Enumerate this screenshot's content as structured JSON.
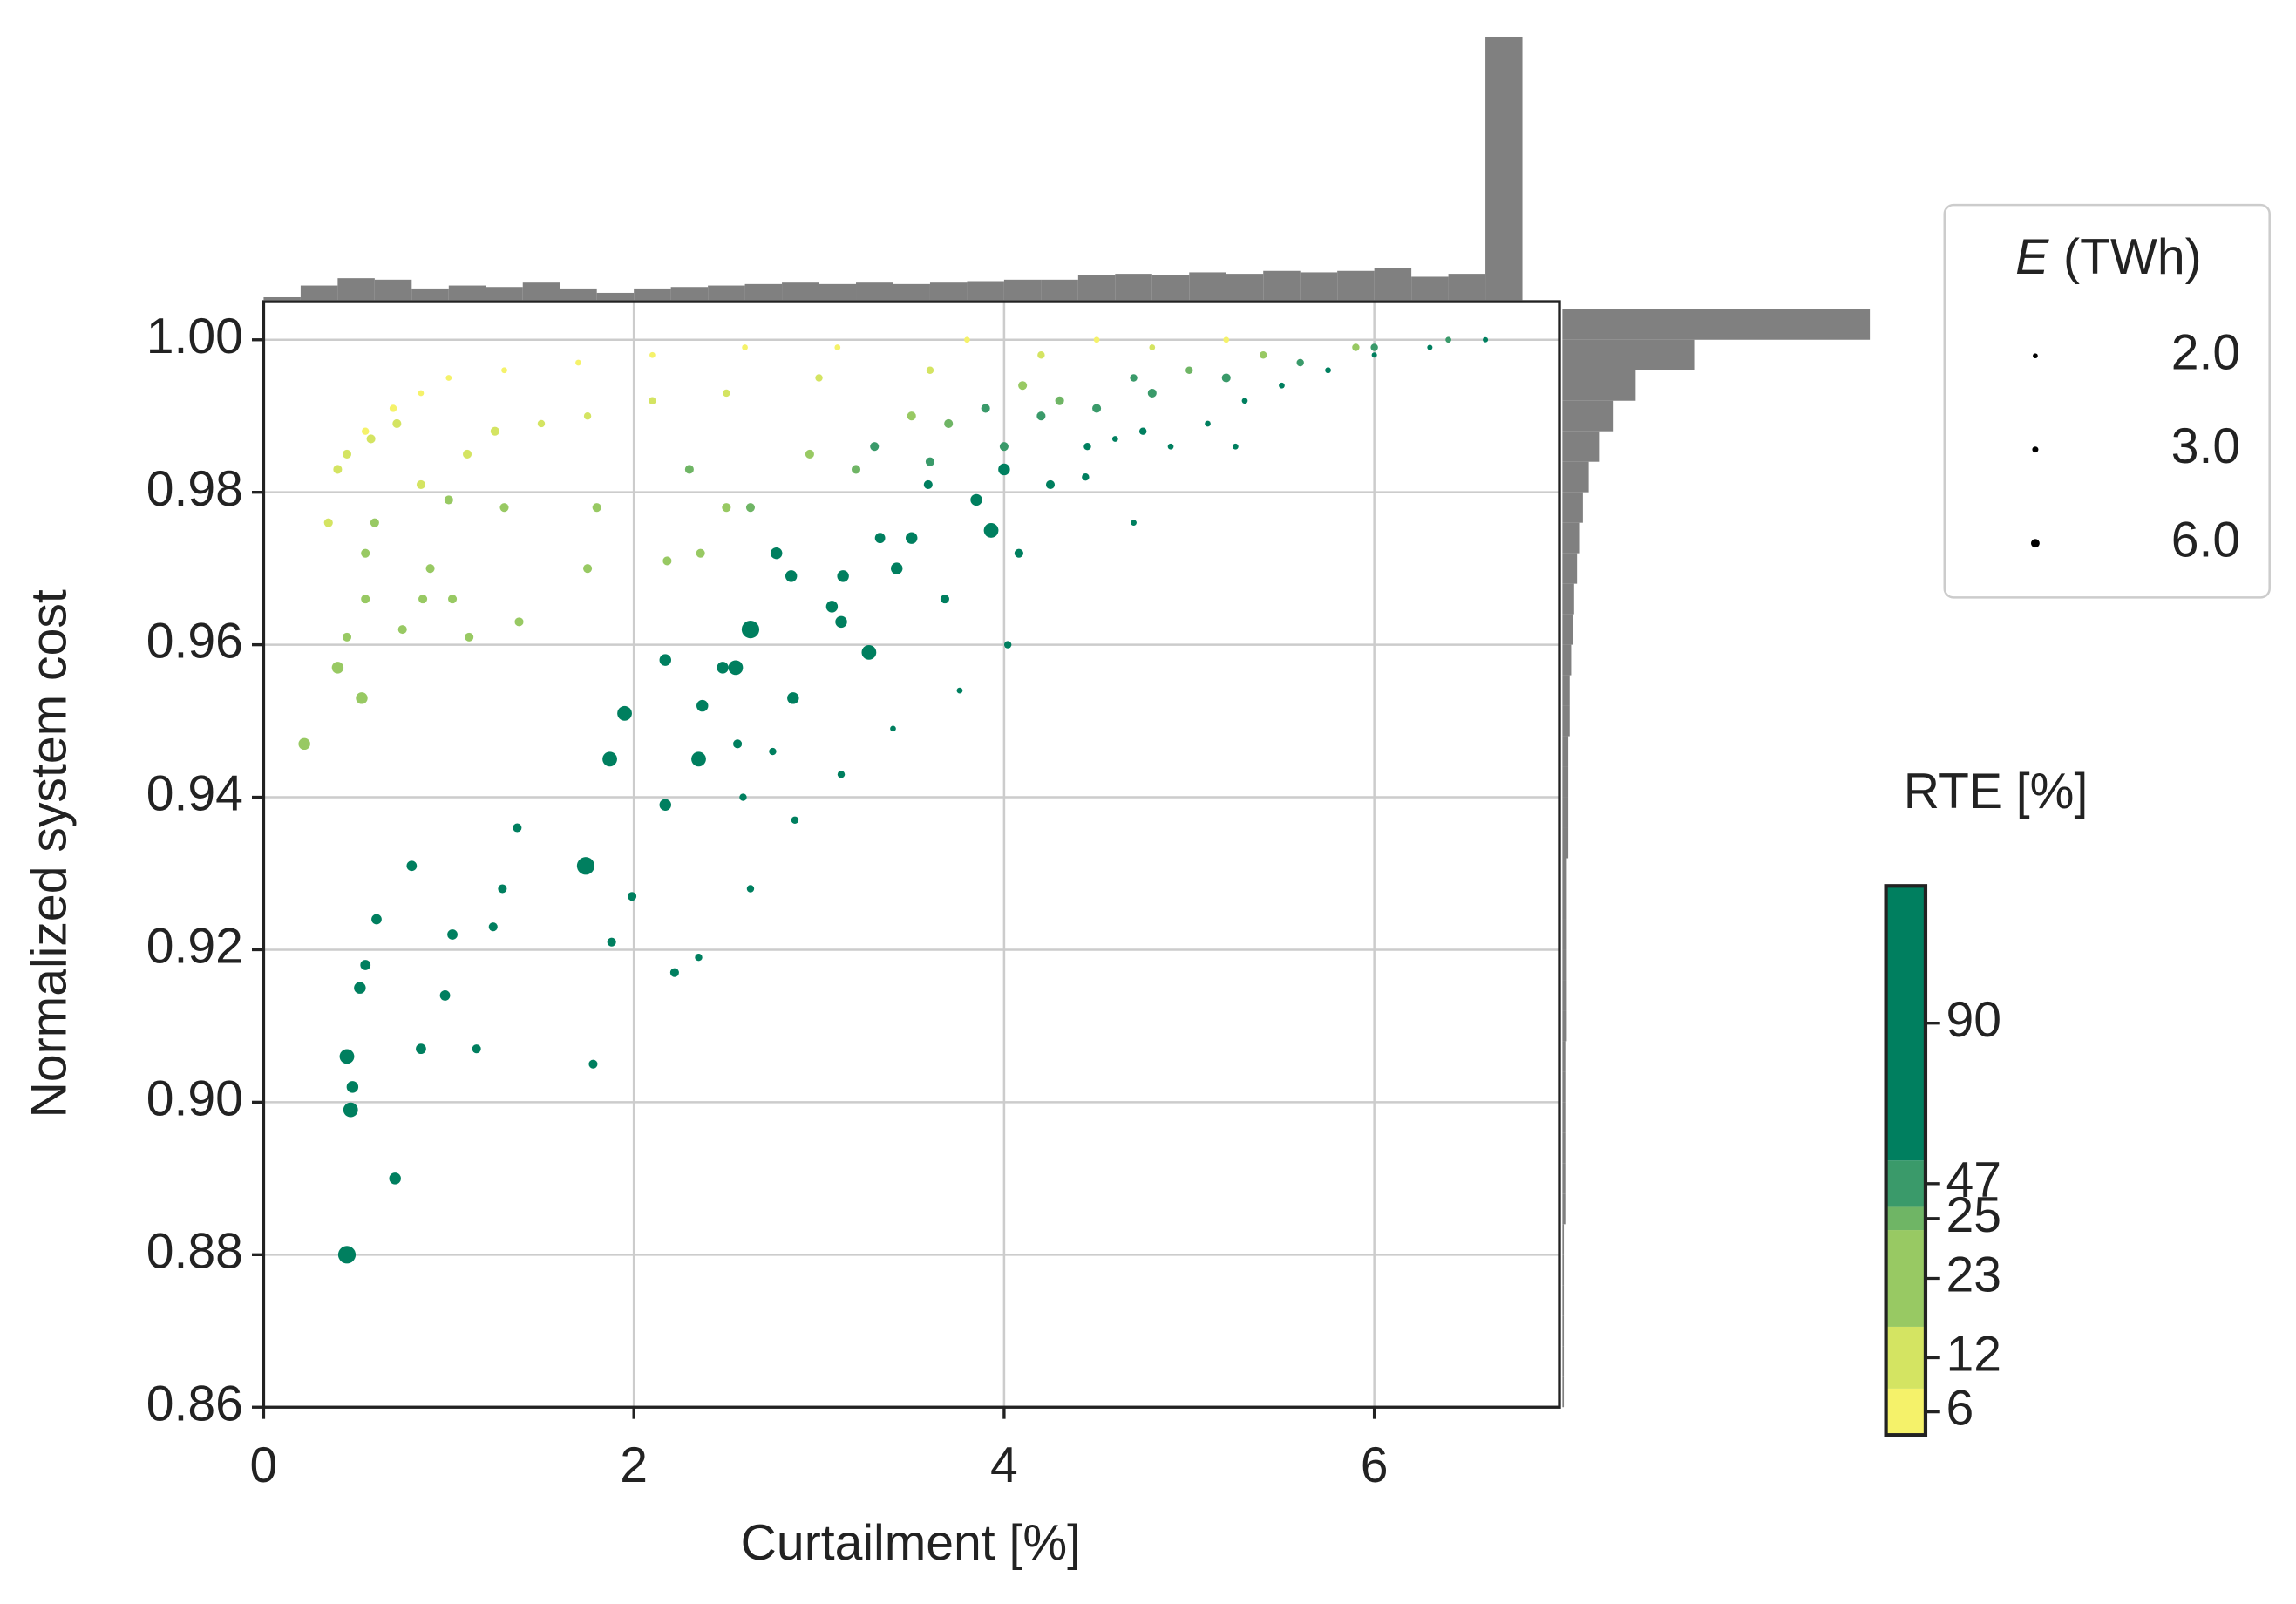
{
  "chart_data": {
    "type": "scatter",
    "xlabel": "Curtailment [%]",
    "ylabel": "Normalized system cost",
    "xlim": [
      0,
      7
    ],
    "ylim": [
      0.86,
      1.005
    ],
    "xticks": [
      0,
      2,
      4,
      6
    ],
    "yticks": [
      0.86,
      0.88,
      {
        "value": 0.9,
        "label": "0.90"
      },
      0.92,
      0.94,
      0.96,
      0.98,
      {
        "value": 1,
        "label": "1.00"
      }
    ],
    "grid": true,
    "groups": [
      {
        "color": "#f5f26a",
        "x": [
          0.55,
          0.7,
          0.85,
          1.0,
          1.3,
          1.7,
          2.1,
          2.6,
          3.1,
          3.8,
          4.5,
          5.2
        ],
        "y": [
          0.988,
          0.991,
          0.993,
          0.995,
          0.996,
          0.997,
          0.998,
          0.999,
          0.999,
          1.0,
          1.0,
          1.0
        ],
        "size": [
          2.5,
          2.5,
          2,
          2,
          2,
          2,
          2,
          2,
          2,
          2,
          2,
          2
        ]
      },
      {
        "color": "#d4e462",
        "x": [
          0.35,
          0.4,
          0.45,
          0.58,
          0.72,
          0.85,
          1.1,
          1.25,
          1.5,
          1.75,
          2.1,
          2.5,
          3.0,
          3.6,
          4.2,
          4.8
        ],
        "y": [
          0.976,
          0.983,
          0.985,
          0.987,
          0.989,
          0.981,
          0.985,
          0.988,
          0.989,
          0.99,
          0.992,
          0.993,
          0.995,
          0.996,
          0.998,
          0.999
        ],
        "size": [
          3,
          3,
          3,
          3,
          3,
          3,
          3,
          3,
          2.5,
          2.5,
          2.5,
          2.5,
          2.5,
          2.5,
          2.5,
          2
        ]
      },
      {
        "color": "#98c963",
        "x": [
          0.22,
          0.4,
          0.53,
          0.45,
          0.55,
          0.55,
          0.6,
          0.75,
          0.86,
          0.9,
          1.02,
          1.11,
          1.0,
          1.3,
          1.38,
          1.75,
          1.8,
          2.18,
          2.36,
          2.5,
          2.95,
          3.5,
          4.1,
          5.4,
          5.9
        ],
        "y": [
          0.947,
          0.957,
          0.953,
          0.961,
          0.966,
          0.972,
          0.976,
          0.962,
          0.966,
          0.97,
          0.966,
          0.961,
          0.979,
          0.978,
          0.963,
          0.97,
          0.978,
          0.971,
          0.972,
          0.978,
          0.985,
          0.99,
          0.994,
          0.998,
          0.999
        ],
        "size": [
          4,
          4,
          4,
          3,
          3,
          3,
          3,
          3,
          3,
          3,
          3,
          3,
          3,
          3,
          3,
          3,
          3,
          3,
          3,
          3,
          3,
          3,
          3,
          2.5,
          2.5
        ]
      },
      {
        "color": "#6fb565",
        "x": [
          2.3,
          2.63,
          3.2,
          3.7,
          4.3,
          5.0
        ],
        "y": [
          0.983,
          0.978,
          0.983,
          0.989,
          0.992,
          0.996
        ],
        "size": [
          3,
          3,
          3,
          3,
          3,
          2.5
        ]
      },
      {
        "color": "#3a9a6a",
        "x": [
          3.3,
          3.6,
          4.0,
          4.2,
          4.5,
          4.8,
          5.2,
          5.6,
          6.0,
          6.4,
          3.9,
          4.7
        ],
        "y": [
          0.986,
          0.984,
          0.986,
          0.99,
          0.991,
          0.993,
          0.995,
          0.997,
          0.999,
          1.0,
          0.991,
          0.995
        ],
        "size": [
          3,
          3,
          3,
          3,
          3,
          3,
          3,
          2.5,
          2.5,
          2,
          3,
          2.5
        ]
      },
      {
        "color": "#007f5f",
        "x": [
          0.45,
          0.47,
          0.48,
          0.45,
          0.71,
          0.52,
          0.55,
          0.61,
          0.8,
          0.85,
          0.98,
          1.02,
          1.15,
          1.24,
          1.29,
          1.37,
          1.74,
          1.78,
          1.87,
          1.88,
          1.95,
          1.99,
          2.17,
          2.17,
          2.22,
          2.35,
          2.35,
          2.37,
          2.48,
          2.55,
          2.63,
          2.56,
          2.59,
          2.63,
          2.75,
          2.77,
          2.85,
          2.86,
          3.07,
          3.12,
          3.13,
          3.27,
          3.33,
          3.42,
          3.5,
          3.4,
          3.59,
          3.68,
          3.76,
          3.85,
          3.93,
          4.0,
          4.08,
          4.02,
          4.25,
          4.44,
          4.45,
          4.6,
          4.7,
          4.9,
          5.1,
          5.3,
          5.5,
          5.75,
          6.0,
          6.3,
          6.6,
          4.75,
          5.25,
          3.12,
          2.87
        ],
        "y": [
          0.88,
          0.899,
          0.902,
          0.906,
          0.89,
          0.915,
          0.918,
          0.924,
          0.931,
          0.907,
          0.914,
          0.922,
          0.907,
          0.923,
          0.928,
          0.936,
          0.931,
          0.905,
          0.945,
          0.921,
          0.951,
          0.927,
          0.958,
          0.939,
          0.917,
          0.945,
          0.919,
          0.952,
          0.957,
          0.957,
          0.962,
          0.947,
          0.94,
          0.928,
          0.946,
          0.972,
          0.969,
          0.953,
          0.965,
          0.963,
          0.969,
          0.959,
          0.974,
          0.97,
          0.974,
          0.949,
          0.981,
          0.966,
          0.954,
          0.979,
          0.975,
          0.983,
          0.972,
          0.96,
          0.981,
          0.982,
          0.986,
          0.987,
          0.976,
          0.986,
          0.989,
          0.992,
          0.994,
          0.996,
          0.998,
          0.999,
          1.0,
          0.988,
          0.986,
          0.943,
          0.937
        ],
        "size": [
          6,
          5,
          4,
          5,
          4,
          4,
          3.5,
          3.5,
          3.5,
          3.5,
          3.5,
          3.5,
          3,
          3,
          3,
          3,
          6,
          3,
          5,
          3,
          5,
          3,
          4,
          4,
          3,
          5,
          2.5,
          4,
          4,
          5,
          6,
          3,
          2.5,
          2.5,
          2.5,
          4,
          4,
          4,
          4,
          4,
          4,
          5,
          3.5,
          4,
          4,
          2,
          3,
          3,
          2,
          4,
          5,
          4,
          3,
          2.5,
          3,
          2.5,
          2.5,
          2,
          2,
          2,
          2,
          2,
          2,
          2,
          1.8,
          1.8,
          1.8,
          2.5,
          2,
          2.5,
          2.5
        ]
      }
    ],
    "x_hist": {
      "color": "#808080",
      "bins": [
        0,
        0.2,
        0.4,
        0.6,
        0.8,
        1.0,
        1.2,
        1.4,
        1.6,
        1.8,
        2.0,
        2.2,
        2.4,
        2.6,
        2.8,
        3.0,
        3.2,
        3.4,
        3.6,
        3.8,
        4.0,
        4.2,
        4.4,
        4.6,
        4.8,
        5.0,
        5.2,
        5.4,
        5.6,
        5.8,
        6.0,
        6.2,
        6.4,
        6.6,
        6.8
      ],
      "counts": [
        2,
        10,
        15,
        14,
        8,
        10,
        9,
        12,
        8,
        5,
        8,
        9,
        10,
        11,
        12,
        11,
        12,
        11,
        12,
        13,
        14,
        14,
        17,
        18,
        17,
        19,
        18,
        20,
        19,
        20,
        22,
        16,
        18,
        180
      ]
    },
    "y_hist": {
      "color": "#808080",
      "bins": [
        0.86,
        0.864,
        0.868,
        0.872,
        0.876,
        0.88,
        0.884,
        0.888,
        0.892,
        0.896,
        0.9,
        0.904,
        0.908,
        0.912,
        0.916,
        0.92,
        0.924,
        0.928,
        0.932,
        0.936,
        0.94,
        0.944,
        0.948,
        0.952,
        0.956,
        0.96,
        0.964,
        0.968,
        0.972,
        0.976,
        0.98,
        0.984,
        0.988,
        0.992,
        0.996,
        1.0,
        1.004
      ],
      "counts": [
        1,
        1,
        1,
        1,
        1,
        1,
        2,
        2,
        2,
        2,
        2,
        2,
        3,
        3,
        3,
        3,
        3,
        3,
        4,
        4,
        4,
        4,
        5,
        5,
        6,
        7,
        8,
        10,
        12,
        14,
        18,
        25,
        35,
        50,
        90,
        210
      ]
    },
    "size_legend": {
      "title_symbol": "E",
      "title_unit": "(TWh)",
      "color": "#000000",
      "values": [
        {
          "value": 2,
          "label": "2.0"
        },
        {
          "value": 3,
          "label": "3.0"
        },
        {
          "value": 6,
          "label": "6.0"
        }
      ]
    },
    "colorbar": {
      "title": "RTE [%]",
      "ticks": [
        6,
        12,
        23,
        25,
        47,
        90
      ]
    }
  }
}
